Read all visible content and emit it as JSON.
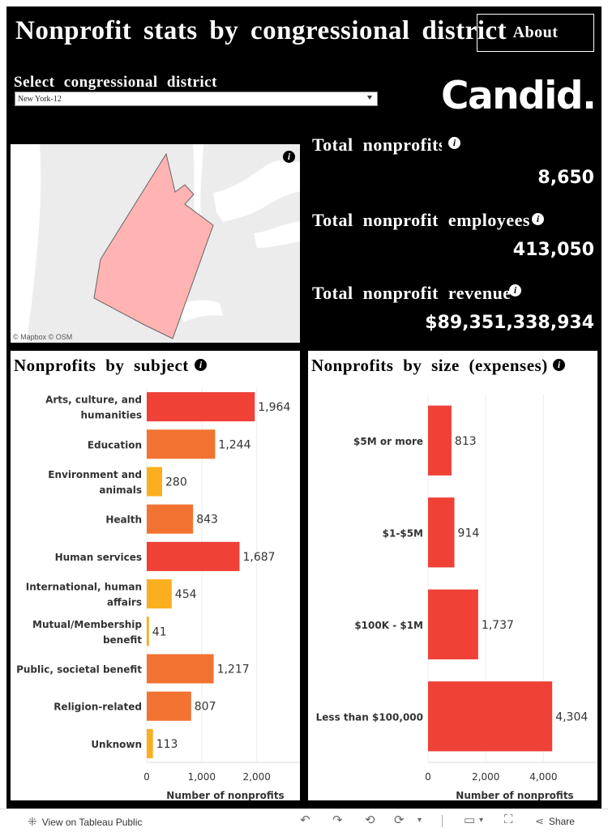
{
  "header": {
    "title": "Nonprofit stats by congressional district",
    "about_label": "About",
    "select_label": "Select congressional district",
    "select_value": "New York-12",
    "logo_text": "Candid."
  },
  "map": {
    "credit": "© Mapbox  © OSM",
    "district_fill": "#ffb3b3",
    "district_stroke": "#666666"
  },
  "stats": [
    {
      "label": "Total nonprofits",
      "value": "8,650"
    },
    {
      "label": "Total nonprofit employees",
      "value": "413,050"
    },
    {
      "label": "Total nonprofit revenue",
      "value": "$89,351,338,934"
    }
  ],
  "subject_panel": {
    "title": "Nonprofits by subject"
  },
  "size_panel": {
    "title": "Nonprofits by size (expenses)"
  },
  "chart_data": [
    {
      "type": "bar",
      "orientation": "horizontal",
      "title": "Nonprofits by subject",
      "categories": [
        [
          "Arts, culture, and",
          "humanities"
        ],
        [
          "Education"
        ],
        [
          "Environment and",
          "animals"
        ],
        [
          "Health"
        ],
        [
          "Human services"
        ],
        [
          "International, human",
          "affairs"
        ],
        [
          "Mutual/Membership",
          "benefit"
        ],
        [
          "Public, societal benefit"
        ],
        [
          "Religion-related"
        ],
        [
          "Unknown"
        ]
      ],
      "values": [
        1964,
        1244,
        280,
        843,
        1687,
        454,
        41,
        1217,
        807,
        113
      ],
      "value_labels": [
        "1,964",
        "1,244",
        "280",
        "843",
        "1,687",
        "454",
        "41",
        "1,217",
        "807",
        "113"
      ],
      "xlabel": "Number of nonprofits",
      "xlim": [
        0,
        2800
      ],
      "ticks": [
        0,
        1000,
        2000
      ],
      "tick_labels": [
        "0",
        "1,000",
        "2,000"
      ],
      "color_scale": [
        "#fbaf1e",
        "#f27331",
        "#ef4136"
      ]
    },
    {
      "type": "bar",
      "orientation": "horizontal",
      "title": "Nonprofits by size (expenses)",
      "categories": [
        [
          "$5M or more"
        ],
        [
          "$1-$5M"
        ],
        [
          "$100K - $1M"
        ],
        [
          "Less than $100,000"
        ]
      ],
      "values": [
        813,
        914,
        1737,
        4304
      ],
      "value_labels": [
        "813",
        "914",
        "1,737",
        "4,304"
      ],
      "xlabel": "Number of nonprofits",
      "xlim": [
        0,
        5900
      ],
      "ticks": [
        0,
        2000,
        4000
      ],
      "tick_labels": [
        "0",
        "2,000",
        "4,000"
      ],
      "bar_color": "#ef4136"
    }
  ],
  "footer": {
    "view_label": "View on Tableau Public",
    "share_label": "Share"
  }
}
